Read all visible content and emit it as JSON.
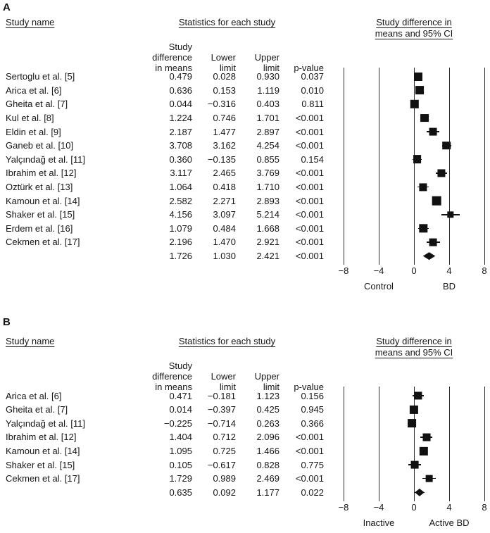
{
  "chart_data": [
    {
      "type": "scatter",
      "subtype": "forest-plot",
      "panel_label": "A",
      "col_headers": {
        "study": "Study name",
        "stats": "Statistics for each study",
        "plot": "Study difference in\nmeans and 95% CI"
      },
      "sub_headers": {
        "diff": "Study difference\nin means",
        "lower": "Lower\nlimit",
        "upper": "Upper\nlimit",
        "pvalue": "p-value"
      },
      "axis": {
        "min": -8,
        "max": 8,
        "ticks": [
          -8,
          -4,
          0,
          4,
          8
        ],
        "tick_labels": [
          "−8",
          "−4",
          "0",
          "4",
          "8"
        ],
        "left_label": "Control",
        "right_label": "BD"
      },
      "rows": [
        {
          "kind": "study",
          "study": "Sertoglu et al. [5]",
          "mean": 0.479,
          "lower": 0.028,
          "upper": 0.93,
          "p": "0.037"
        },
        {
          "kind": "study",
          "study": "Arica et al. [6]",
          "mean": 0.636,
          "lower": 0.153,
          "upper": 1.119,
          "p": "0.010"
        },
        {
          "kind": "study",
          "study": "Gheita et al. [7]",
          "mean": 0.044,
          "lower": -0.316,
          "upper": 0.403,
          "p": "0.811"
        },
        {
          "kind": "study",
          "study": "Kul et al. [8]",
          "mean": 1.224,
          "lower": 0.746,
          "upper": 1.701,
          "p": "<0.001"
        },
        {
          "kind": "study",
          "study": "Eldin et al. [9]",
          "mean": 2.187,
          "lower": 1.477,
          "upper": 2.897,
          "p": "<0.001"
        },
        {
          "kind": "study",
          "study": "Ganeb et al. [10]",
          "mean": 3.708,
          "lower": 3.162,
          "upper": 4.254,
          "p": "<0.001"
        },
        {
          "kind": "study",
          "study": "Yalçındağ et al. [11]",
          "mean": 0.36,
          "lower": -0.135,
          "upper": 0.855,
          "p": "0.154"
        },
        {
          "kind": "study",
          "study": "Ibrahim et al. [12]",
          "mean": 3.117,
          "lower": 2.465,
          "upper": 3.769,
          "p": "<0.001"
        },
        {
          "kind": "study",
          "study": "Oztürk et al. [13]",
          "mean": 1.064,
          "lower": 0.418,
          "upper": 1.71,
          "p": "<0.001"
        },
        {
          "kind": "study",
          "study": "Kamoun et al. [14]",
          "mean": 2.582,
          "lower": 2.271,
          "upper": 2.893,
          "p": "<0.001"
        },
        {
          "kind": "study",
          "study": "Shaker et al. [15]",
          "mean": 4.156,
          "lower": 3.097,
          "upper": 5.214,
          "p": "<0.001"
        },
        {
          "kind": "study",
          "study": "Erdem et al. [16]",
          "mean": 1.079,
          "lower": 0.484,
          "upper": 1.668,
          "p": "<0.001"
        },
        {
          "kind": "study",
          "study": "Cekmen et al. [17]",
          "mean": 2.196,
          "lower": 1.47,
          "upper": 2.921,
          "p": "<0.001"
        },
        {
          "kind": "summary",
          "study": "",
          "mean": 1.726,
          "lower": 1.03,
          "upper": 2.421,
          "p": "<0.001"
        }
      ]
    },
    {
      "type": "scatter",
      "subtype": "forest-plot",
      "panel_label": "B",
      "col_headers": {
        "study": "Study name",
        "stats": "Statistics for each study",
        "plot": "Study difference in\nmeans and 95% CI"
      },
      "sub_headers": {
        "diff": "Study difference\nin means",
        "lower": "Lower\nlimit",
        "upper": "Upper\nlimit",
        "pvalue": "p-value"
      },
      "axis": {
        "min": -8,
        "max": 8,
        "ticks": [
          -8,
          -4,
          0,
          4,
          8
        ],
        "tick_labels": [
          "−8",
          "−4",
          "0",
          "4",
          "8"
        ],
        "left_label": "Inactive",
        "right_label": "Active BD"
      },
      "rows": [
        {
          "kind": "study",
          "study": "Arica et al. [6]",
          "mean": 0.471,
          "lower": -0.181,
          "upper": 1.123,
          "p": "0.156"
        },
        {
          "kind": "study",
          "study": "Gheita et al. [7]",
          "mean": 0.014,
          "lower": -0.397,
          "upper": 0.425,
          "p": "0.945"
        },
        {
          "kind": "study",
          "study": "Yalçındağ et al. [11]",
          "mean": -0.225,
          "lower": -0.714,
          "upper": 0.263,
          "p": "0.366"
        },
        {
          "kind": "study",
          "study": "Ibrahim et al. [12]",
          "mean": 1.404,
          "lower": 0.712,
          "upper": 2.096,
          "p": "<0.001"
        },
        {
          "kind": "study",
          "study": "Kamoun et al. [14]",
          "mean": 1.095,
          "lower": 0.725,
          "upper": 1.466,
          "p": "<0.001"
        },
        {
          "kind": "study",
          "study": "Shaker et al. [15]",
          "mean": 0.105,
          "lower": -0.617,
          "upper": 0.828,
          "p": "0.775"
        },
        {
          "kind": "study",
          "study": "Cekmen et al. [17]",
          "mean": 1.729,
          "lower": 0.989,
          "upper": 2.469,
          "p": "<0.001"
        },
        {
          "kind": "summary",
          "study": "",
          "mean": 0.635,
          "lower": 0.092,
          "upper": 1.177,
          "p": "0.022"
        }
      ]
    }
  ]
}
